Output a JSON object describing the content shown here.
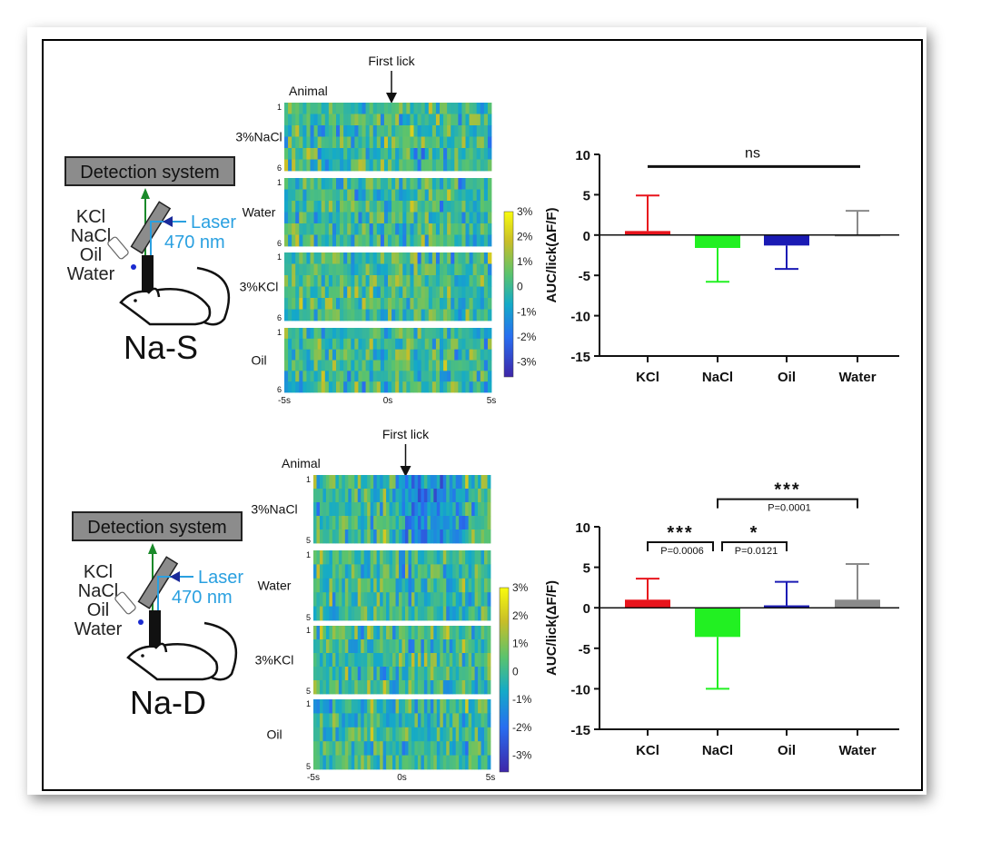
{
  "panels": [
    {
      "id": "top",
      "setup": {
        "detection_label": "Detection system",
        "stimuli": [
          "KCl",
          "NaCl",
          "Oil",
          "Water"
        ],
        "laser_label": "Laser",
        "wavelength_label": "470 nm",
        "group_label": "Na-S"
      },
      "heatmap": {
        "event_label": "First lick",
        "row_axis_label": "Animal",
        "rows_first": "1",
        "rows_last": "6",
        "n_animals": 6,
        "conditions": [
          "3%NaCl",
          "Water",
          "3%KCl",
          "Oil"
        ],
        "x_ticks": [
          "-5s",
          "0s",
          "5s"
        ],
        "colorbar_ticks": [
          "3%",
          "2%",
          "1%",
          "0",
          "-1%",
          "-2%",
          "-3%"
        ]
      }
    },
    {
      "id": "bottom",
      "setup": {
        "detection_label": "Detection system",
        "stimuli": [
          "KCl",
          "NaCl",
          "Oil",
          "Water"
        ],
        "laser_label": "Laser",
        "wavelength_label": "470 nm",
        "group_label": "Na-D"
      },
      "heatmap": {
        "event_label": "First lick",
        "row_axis_label": "Animal",
        "rows_first": "1",
        "rows_last": "5",
        "n_animals": 5,
        "conditions": [
          "3%NaCl",
          "Water",
          "3%KCl",
          "Oil"
        ],
        "x_ticks": [
          "-5s",
          "0s",
          "5s"
        ],
        "colorbar_ticks": [
          "3%",
          "2%",
          "1%",
          "0",
          "-1%",
          "-2%",
          "-3%"
        ]
      }
    }
  ],
  "chart_data": [
    {
      "type": "bar",
      "panel": "top",
      "ylabel": "AUC/lick(ΔF/F)",
      "categories": [
        "KCl",
        "NaCl",
        "Oil",
        "Water"
      ],
      "values": [
        0.5,
        -1.6,
        -1.3,
        0.0
      ],
      "error_ends": [
        4.9,
        -5.8,
        -4.2,
        3.0
      ],
      "colors": [
        "#e8141c",
        "#22f022",
        "#1a1ab4",
        "#8a8a8a"
      ],
      "ylim": [
        -15,
        10
      ],
      "yticks": [
        10,
        5,
        0,
        -5,
        -10,
        -15
      ],
      "annotations": [
        {
          "from": 0,
          "to": 3,
          "level": 8.5,
          "stars": "ns",
          "p": ""
        }
      ]
    },
    {
      "type": "bar",
      "panel": "bottom",
      "ylabel": "AUC/lick(ΔF/F)",
      "categories": [
        "KCl",
        "NaCl",
        "Oil",
        "Water"
      ],
      "values": [
        1.0,
        -3.6,
        0.3,
        1.0
      ],
      "error_ends": [
        3.6,
        -10.0,
        3.2,
        5.4
      ],
      "colors": [
        "#e8141c",
        "#22f022",
        "#1a1ab4",
        "#8a8a8a"
      ],
      "ylim": [
        -15,
        10
      ],
      "yticks": [
        10,
        5,
        0,
        -5,
        -10,
        -15
      ],
      "annotations": [
        {
          "from": 0,
          "to": 1,
          "level": 8.1,
          "stars": "***",
          "p": "P=0.0006"
        },
        {
          "from": 1,
          "to": 2,
          "level": 8.1,
          "stars": "*",
          "p": "P=0.0121"
        },
        {
          "from": 1,
          "to": 3,
          "level": 13.4,
          "stars": "***",
          "p": "P=0.0001"
        }
      ]
    }
  ]
}
